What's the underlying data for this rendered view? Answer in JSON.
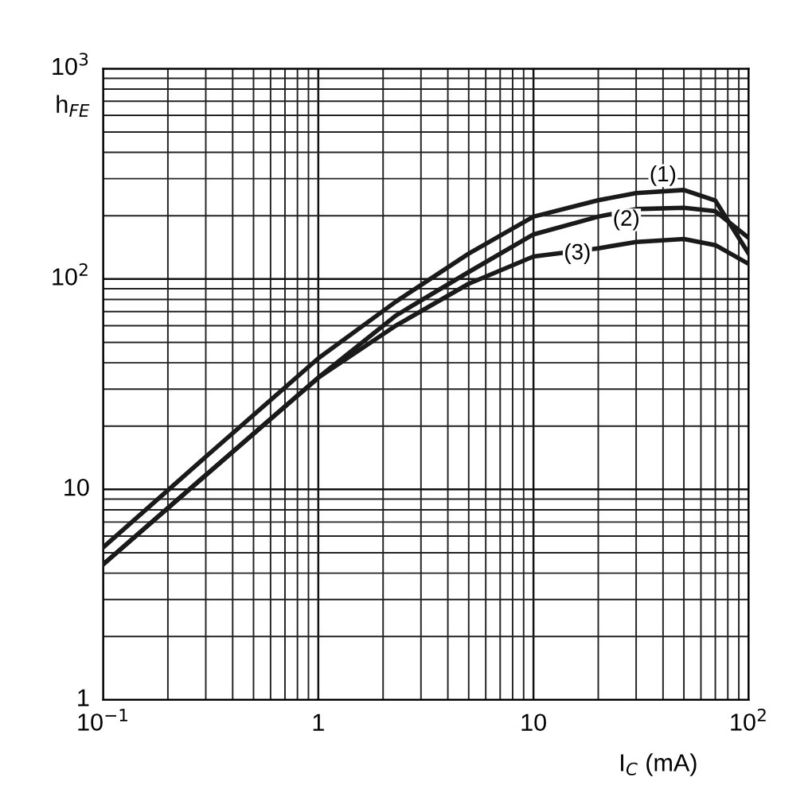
{
  "chart_data": {
    "type": "line",
    "xlabel": "I$_{C}$ (mA)",
    "ylabel": "h$_{FE}$",
    "log": "xy",
    "grid": true,
    "marker": "none",
    "line_style": "solid",
    "xlim": [
      0.1,
      100
    ],
    "ylim": [
      1,
      1000
    ],
    "xticks": [
      {
        "value": 0.1,
        "label": "10$^{−1}$"
      },
      1,
      10,
      {
        "value": 100,
        "label": "10$^{2}$"
      }
    ],
    "yticks": [
      1,
      10,
      {
        "value": 100,
        "label": "10$^{2}$"
      },
      {
        "value": 1000,
        "label": "10$^{3}$"
      }
    ],
    "series": [
      {
        "color": "#1a1a1a",
        "x": [
          0.1,
          0.3,
          1,
          2.29,
          5,
          10,
          20,
          30,
          50,
          70,
          100
        ],
        "values": [
          5.3,
          14.3,
          42,
          78,
          132,
          198,
          237,
          256,
          265,
          236,
          132
        ]
      },
      {
        "color": "#1a1a1a",
        "x": [
          0.1,
          0.3,
          1,
          2.29,
          5,
          10,
          20,
          30,
          50,
          70,
          100
        ],
        "values": [
          4.4,
          11.7,
          34,
          67,
          108,
          163,
          198,
          215,
          218,
          210,
          157
        ]
      },
      {
        "color": "#1a1a1a",
        "x": [
          0.1,
          0.3,
          1,
          2.29,
          5,
          10,
          20,
          30,
          50,
          70,
          100
        ],
        "values": [
          4.4,
          11.7,
          34,
          60,
          95,
          128,
          140,
          150,
          155,
          145,
          118
        ]
      }
    ],
    "annotations": [
      {
        "text": "(1)",
        "x": 40,
        "y": 310
      },
      {
        "text": "(2)",
        "x": 27,
        "y": 191
      },
      {
        "text": "(3)",
        "x": 16,
        "y": 132
      }
    ]
  }
}
